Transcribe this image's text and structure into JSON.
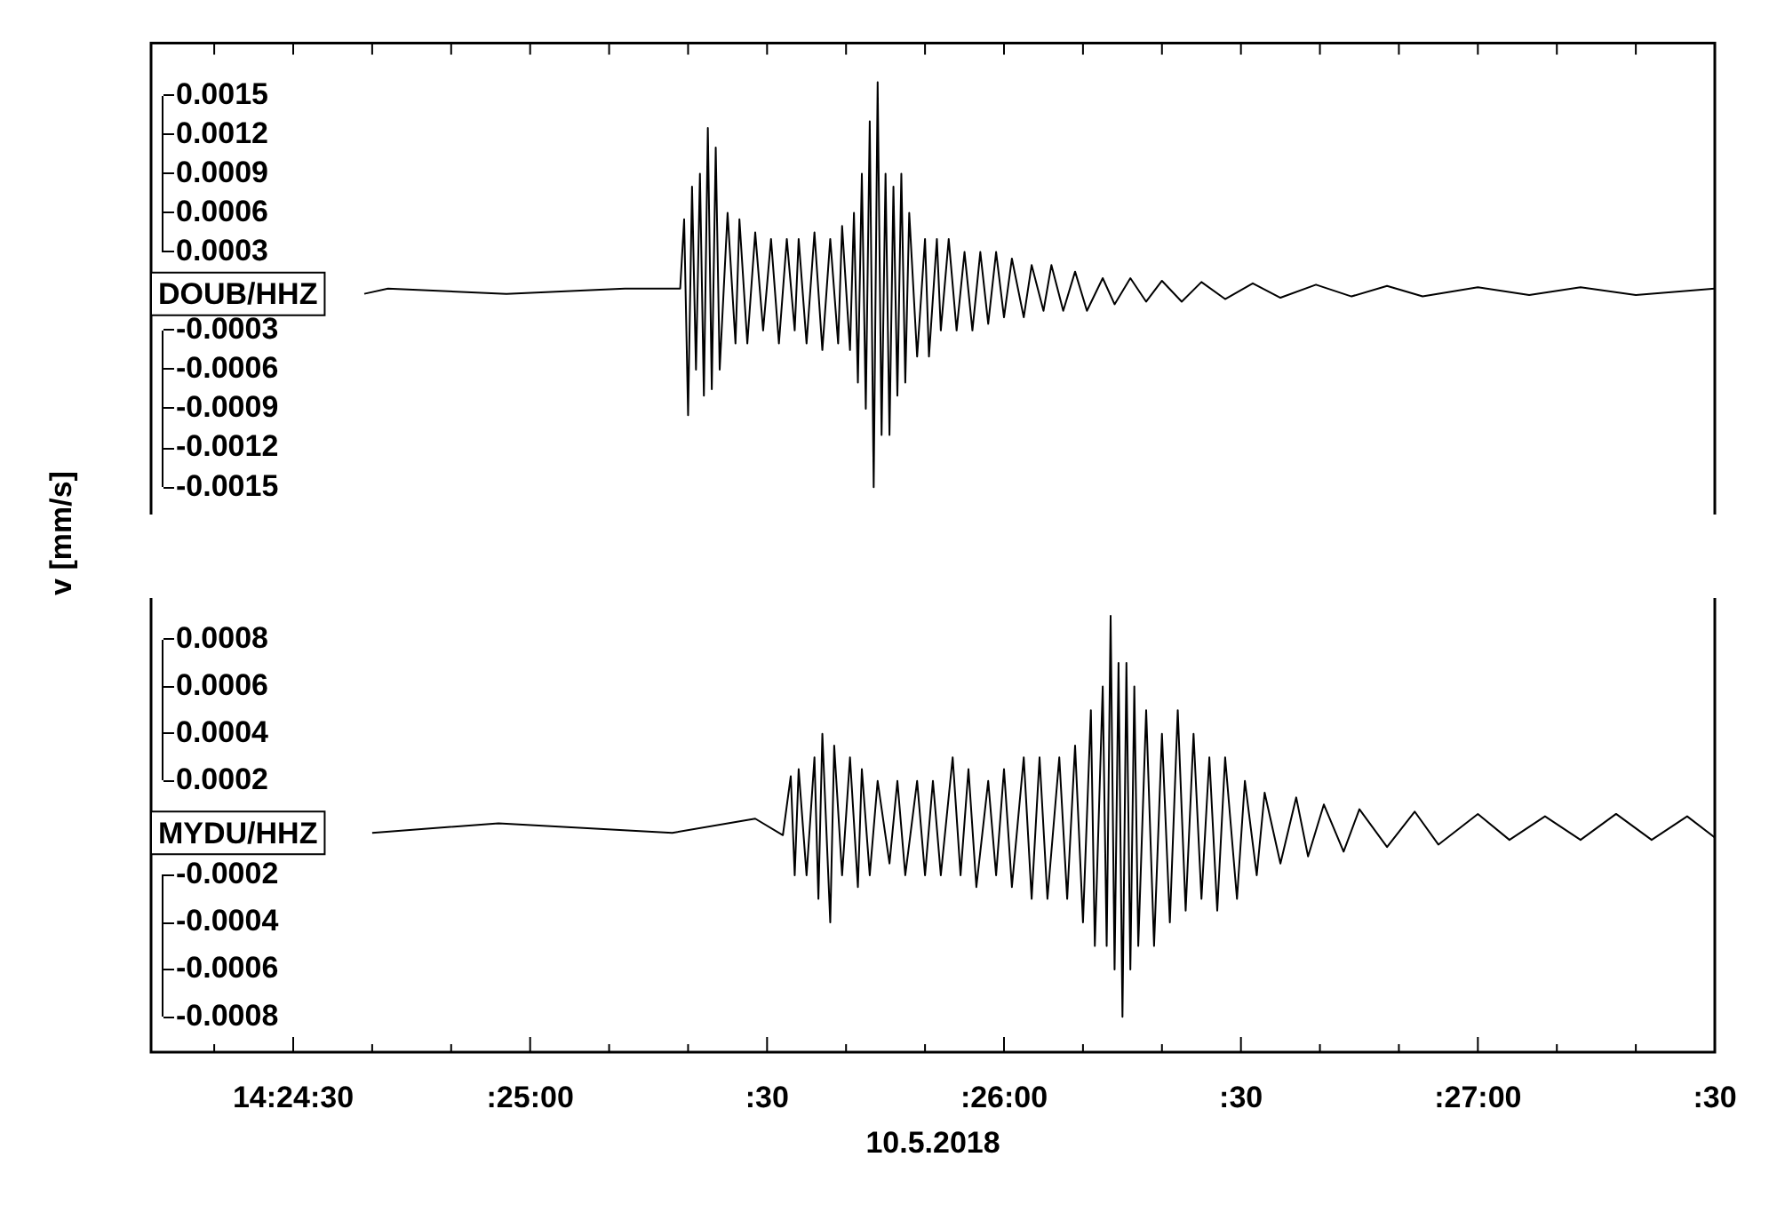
{
  "chart_data": [
    {
      "type": "line",
      "ylabel": "v [mm/s]",
      "tick_labels": "y",
      "xlim": [
        "2018-05-10T14:24:12",
        "2018-05-10T14:27:30"
      ],
      "xticks": [
        {
          "value": "2018-05-10T14:24:20",
          "label": null
        },
        {
          "value": "2018-05-10T14:24:30",
          "label": null
        },
        {
          "value": "2018-05-10T14:24:40",
          "label": null
        },
        {
          "value": "2018-05-10T14:24:50",
          "label": null
        },
        {
          "value": "2018-05-10T14:25:00",
          "label": null
        },
        {
          "value": "2018-05-10T14:25:10",
          "label": null
        },
        {
          "value": "2018-05-10T14:25:20",
          "label": null
        },
        {
          "value": "2018-05-10T14:25:30",
          "label": null
        },
        {
          "value": "2018-05-10T14:25:40",
          "label": null
        },
        {
          "value": "2018-05-10T14:25:50",
          "label": null
        },
        {
          "value": "2018-05-10T14:26:00",
          "label": null
        },
        {
          "value": "2018-05-10T14:26:10",
          "label": null
        },
        {
          "value": "2018-05-10T14:26:20",
          "label": null
        },
        {
          "value": "2018-05-10T14:26:30",
          "label": null
        },
        {
          "value": "2018-05-10T14:26:40",
          "label": null
        },
        {
          "value": "2018-05-10T14:26:50",
          "label": null
        },
        {
          "value": "2018-05-10T14:27:00",
          "label": null
        },
        {
          "value": "2018-05-10T14:27:10",
          "label": null
        },
        {
          "value": "2018-05-10T14:27:20",
          "label": null
        },
        {
          "value": "2018-05-10T14:27:30",
          "label": null
        }
      ],
      "ylim": [
        -0.0017,
        0.0019
      ],
      "yticks": [
        0.0015,
        0.0012,
        0.0009,
        0.0006,
        0.0003,
        -0.0003,
        -0.0006,
        -0.0009,
        -0.0012,
        -0.0015
      ],
      "series": [
        {
          "name": "DOUB/HHZ",
          "color": "#000000",
          "x": [
            "2018-05-10T14:24:39",
            "2018-05-10T14:24:42",
            "2018-05-10T14:24:57",
            "2018-05-10T14:25:12",
            "2018-05-10T14:25:19",
            "2018-05-10T14:25:19.5",
            "2018-05-10T14:25:20",
            "2018-05-10T14:25:20.5",
            "2018-05-10T14:25:21",
            "2018-05-10T14:25:21.5",
            "2018-05-10T14:25:22",
            "2018-05-10T14:25:22.5",
            "2018-05-10T14:25:23",
            "2018-05-10T14:25:23.5",
            "2018-05-10T14:25:24",
            "2018-05-10T14:25:25",
            "2018-05-10T14:25:26",
            "2018-05-10T14:25:26.5",
            "2018-05-10T14:25:27.5",
            "2018-05-10T14:25:28.5",
            "2018-05-10T14:25:29.5",
            "2018-05-10T14:25:30.5",
            "2018-05-10T14:25:31.5",
            "2018-05-10T14:25:32.5",
            "2018-05-10T14:25:33.5",
            "2018-05-10T14:25:34",
            "2018-05-10T14:25:35",
            "2018-05-10T14:25:36",
            "2018-05-10T14:25:37",
            "2018-05-10T14:25:38",
            "2018-05-10T14:25:39",
            "2018-05-10T14:25:39.5",
            "2018-05-10T14:25:40.5",
            "2018-05-10T14:25:41",
            "2018-05-10T14:25:41.5",
            "2018-05-10T14:25:42",
            "2018-05-10T14:25:42.5",
            "2018-05-10T14:25:43",
            "2018-05-10T14:25:43.5",
            "2018-05-10T14:25:44",
            "2018-05-10T14:25:44.5",
            "2018-05-10T14:25:45",
            "2018-05-10T14:25:45.5",
            "2018-05-10T14:25:46",
            "2018-05-10T14:25:46.5",
            "2018-05-10T14:25:47",
            "2018-05-10T14:25:47.5",
            "2018-05-10T14:25:48",
            "2018-05-10T14:25:49",
            "2018-05-10T14:25:50",
            "2018-05-10T14:25:50.5",
            "2018-05-10T14:25:51.5",
            "2018-05-10T14:25:52",
            "2018-05-10T14:25:53",
            "2018-05-10T14:25:54",
            "2018-05-10T14:25:55",
            "2018-05-10T14:25:56",
            "2018-05-10T14:25:57",
            "2018-05-10T14:25:58",
            "2018-05-10T14:25:59",
            "2018-05-10T14:26:00",
            "2018-05-10T14:26:01",
            "2018-05-10T14:26:02.5",
            "2018-05-10T14:26:03.5",
            "2018-05-10T14:26:05",
            "2018-05-10T14:26:06",
            "2018-05-10T14:26:07.5",
            "2018-05-10T14:26:09",
            "2018-05-10T14:26:10.5",
            "2018-05-10T14:26:12.5",
            "2018-05-10T14:26:14",
            "2018-05-10T14:26:16",
            "2018-05-10T14:26:18",
            "2018-05-10T14:26:20",
            "2018-05-10T14:26:22.5",
            "2018-05-10T14:26:25",
            "2018-05-10T14:26:28",
            "2018-05-10T14:26:31.5",
            "2018-05-10T14:26:35",
            "2018-05-10T14:26:39.5",
            "2018-05-10T14:26:44",
            "2018-05-10T14:26:48.5",
            "2018-05-10T14:26:53",
            "2018-05-10T14:27:00",
            "2018-05-10T14:27:06.5",
            "2018-05-10T14:27:13",
            "2018-05-10T14:27:20",
            "2018-05-10T14:27:30"
          ],
          "values": [
            -2e-05,
            2e-05,
            -2e-05,
            2e-05,
            2e-05,
            0.00055,
            -0.00095,
            0.0008,
            -0.0006,
            0.0009,
            -0.0008,
            0.00125,
            -0.00075,
            0.0011,
            -0.0006,
            0.0006,
            -0.0004,
            0.00055,
            -0.0004,
            0.00045,
            -0.0003,
            0.0004,
            -0.0004,
            0.0004,
            -0.0003,
            0.0004,
            -0.0004,
            0.00045,
            -0.00045,
            0.0004,
            -0.0004,
            0.0005,
            -0.00045,
            0.0006,
            -0.0007,
            0.0009,
            -0.0009,
            0.0013,
            -0.0015,
            0.0016,
            -0.0011,
            0.0009,
            -0.0011,
            0.0008,
            -0.0008,
            0.0009,
            -0.0007,
            0.0006,
            -0.0005,
            0.0004,
            -0.0005,
            0.0004,
            -0.0003,
            0.0004,
            -0.0003,
            0.0003,
            -0.0003,
            0.0003,
            -0.00025,
            0.0003,
            -0.0002,
            0.00025,
            -0.0002,
            0.0002,
            -0.00015,
            0.0002,
            -0.00015,
            0.00015,
            -0.00015,
            0.0001,
            -0.0001,
            0.0001,
            -8e-05,
            8e-05,
            -8e-05,
            7e-05,
            -6e-05,
            6e-05,
            -5e-05,
            5e-05,
            -4e-05,
            4e-05,
            -4e-05,
            3e-05,
            -3e-05,
            3e-05,
            -3e-05,
            2e-05
          ]
        }
      ]
    },
    {
      "type": "line",
      "xlabel": "10.5.2018",
      "xlim": [
        "2018-05-10T14:24:12",
        "2018-05-10T14:27:30"
      ],
      "xticks": [
        {
          "value": "2018-05-10T14:24:20",
          "label": null
        },
        {
          "value": "2018-05-10T14:24:30",
          "label": "14:24:30"
        },
        {
          "value": "2018-05-10T14:24:40",
          "label": null
        },
        {
          "value": "2018-05-10T14:24:50",
          "label": null
        },
        {
          "value": "2018-05-10T14:25:00",
          "label": ":25:00"
        },
        {
          "value": "2018-05-10T14:25:10",
          "label": null
        },
        {
          "value": "2018-05-10T14:25:20",
          "label": null
        },
        {
          "value": "2018-05-10T14:25:30",
          "label": ":30"
        },
        {
          "value": "2018-05-10T14:25:40",
          "label": null
        },
        {
          "value": "2018-05-10T14:25:50",
          "label": null
        },
        {
          "value": "2018-05-10T14:26:00",
          "label": ":26:00"
        },
        {
          "value": "2018-05-10T14:26:10",
          "label": null
        },
        {
          "value": "2018-05-10T14:26:20",
          "label": null
        },
        {
          "value": "2018-05-10T14:26:30",
          "label": ":30"
        },
        {
          "value": "2018-05-10T14:26:40",
          "label": null
        },
        {
          "value": "2018-05-10T14:26:50",
          "label": null
        },
        {
          "value": "2018-05-10T14:27:00",
          "label": ":27:00"
        },
        {
          "value": "2018-05-10T14:27:10",
          "label": null
        },
        {
          "value": "2018-05-10T14:27:20",
          "label": null
        },
        {
          "value": "2018-05-10T14:27:30",
          "label": ":30"
        }
      ],
      "ylim": [
        -0.00095,
        0.00097
      ],
      "yticks": [
        0.0008,
        0.0006,
        0.0004,
        0.0002,
        -0.0002,
        -0.0004,
        -0.0006,
        -0.0008
      ],
      "series": [
        {
          "name": "MYDU/HHZ",
          "color": "#000000",
          "x": [
            "2018-05-10T14:24:40",
            "2018-05-10T14:24:56",
            "2018-05-10T14:25:18",
            "2018-05-10T14:25:28.5",
            "2018-05-10T14:25:32",
            "2018-05-10T14:25:33",
            "2018-05-10T14:25:33.5",
            "2018-05-10T14:25:34",
            "2018-05-10T14:25:35",
            "2018-05-10T14:25:36",
            "2018-05-10T14:25:36.5",
            "2018-05-10T14:25:37",
            "2018-05-10T14:25:38",
            "2018-05-10T14:25:38.5",
            "2018-05-10T14:25:39.5",
            "2018-05-10T14:25:40.5",
            "2018-05-10T14:25:41.5",
            "2018-05-10T14:25:42",
            "2018-05-10T14:25:43",
            "2018-05-10T14:25:44",
            "2018-05-10T14:25:45.5",
            "2018-05-10T14:25:46.5",
            "2018-05-10T14:25:47.5",
            "2018-05-10T14:25:49",
            "2018-05-10T14:25:50",
            "2018-05-10T14:25:51",
            "2018-05-10T14:25:52",
            "2018-05-10T14:25:53.5",
            "2018-05-10T14:25:54.5",
            "2018-05-10T14:25:55.5",
            "2018-05-10T14:25:56.5",
            "2018-05-10T14:25:58",
            "2018-05-10T14:25:59",
            "2018-05-10T14:26:00",
            "2018-05-10T14:26:01",
            "2018-05-10T14:26:02.5",
            "2018-05-10T14:26:03.5",
            "2018-05-10T14:26:04.5",
            "2018-05-10T14:26:05.5",
            "2018-05-10T14:26:07",
            "2018-05-10T14:26:08",
            "2018-05-10T14:26:09",
            "2018-05-10T14:26:10",
            "2018-05-10T14:26:11",
            "2018-05-10T14:26:11.5",
            "2018-05-10T14:26:12.5",
            "2018-05-10T14:26:13",
            "2018-05-10T14:26:13.5",
            "2018-05-10T14:26:14",
            "2018-05-10T14:26:14.5",
            "2018-05-10T14:26:15",
            "2018-05-10T14:26:15.5",
            "2018-05-10T14:26:16",
            "2018-05-10T14:26:16.5",
            "2018-05-10T14:26:17",
            "2018-05-10T14:26:18",
            "2018-05-10T14:26:19",
            "2018-05-10T14:26:20",
            "2018-05-10T14:26:21",
            "2018-05-10T14:26:22",
            "2018-05-10T14:26:23",
            "2018-05-10T14:26:24",
            "2018-05-10T14:26:25",
            "2018-05-10T14:26:26",
            "2018-05-10T14:26:27",
            "2018-05-10T14:26:28",
            "2018-05-10T14:26:29.5",
            "2018-05-10T14:26:30.5",
            "2018-05-10T14:26:32",
            "2018-05-10T14:26:33",
            "2018-05-10T14:26:35",
            "2018-05-10T14:26:37",
            "2018-05-10T14:26:38.5",
            "2018-05-10T14:26:40.5",
            "2018-05-10T14:26:43",
            "2018-05-10T14:26:45",
            "2018-05-10T14:26:48.5",
            "2018-05-10T14:26:52",
            "2018-05-10T14:26:55",
            "2018-05-10T14:27:00",
            "2018-05-10T14:27:04",
            "2018-05-10T14:27:08.5",
            "2018-05-10T14:27:13",
            "2018-05-10T14:27:17.5",
            "2018-05-10T14:27:22",
            "2018-05-10T14:27:26.5",
            "2018-05-10T14:27:30"
          ],
          "values": [
            -2e-05,
            2e-05,
            -2e-05,
            4e-05,
            -3e-05,
            0.00022,
            -0.0002,
            0.00025,
            -0.0002,
            0.0003,
            -0.0003,
            0.0004,
            -0.0004,
            0.00035,
            -0.0002,
            0.0003,
            -0.00025,
            0.00025,
            -0.0002,
            0.0002,
            -0.00015,
            0.0002,
            -0.0002,
            0.0002,
            -0.0002,
            0.0002,
            -0.0002,
            0.0003,
            -0.0002,
            0.00025,
            -0.00025,
            0.0002,
            -0.0002,
            0.00025,
            -0.00025,
            0.0003,
            -0.0003,
            0.0003,
            -0.0003,
            0.0003,
            -0.0003,
            0.00035,
            -0.0004,
            0.0005,
            -0.0005,
            0.0006,
            -0.0005,
            0.0009,
            -0.0006,
            0.0007,
            -0.0008,
            0.0007,
            -0.0006,
            0.0006,
            -0.0005,
            0.0005,
            -0.0005,
            0.0004,
            -0.0004,
            0.0005,
            -0.00035,
            0.0004,
            -0.0003,
            0.0003,
            -0.00035,
            0.0003,
            -0.0003,
            0.0002,
            -0.0002,
            0.00015,
            -0.00015,
            0.00013,
            -0.00012,
            0.0001,
            -0.0001,
            8e-05,
            -8e-05,
            7e-05,
            -7e-05,
            6e-05,
            -5e-05,
            5e-05,
            -5e-05,
            6e-05,
            -5e-05,
            5e-05,
            -4e-05
          ]
        }
      ]
    }
  ]
}
